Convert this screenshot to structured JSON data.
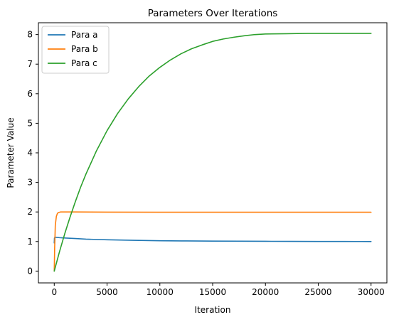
{
  "chart_data": {
    "type": "line",
    "title": "Parameters Over Iterations",
    "xlabel": "Iteration",
    "ylabel": "Parameter Value",
    "xlim": [
      -1500,
      31500
    ],
    "ylim": [
      -0.4,
      8.4
    ],
    "xticks": [
      0,
      5000,
      10000,
      15000,
      20000,
      25000,
      30000
    ],
    "xtick_labels": [
      "0",
      "5000",
      "10000",
      "15000",
      "20000",
      "25000",
      "30000"
    ],
    "yticks": [
      0,
      1,
      2,
      3,
      4,
      5,
      6,
      7,
      8
    ],
    "ytick_labels": [
      "0",
      "1",
      "2",
      "3",
      "4",
      "5",
      "6",
      "7",
      "8"
    ],
    "grid": false,
    "legend_position": "top-left",
    "series": [
      {
        "name": "Para a",
        "color": "#1f77b4",
        "x": [
          0,
          20,
          60,
          200,
          500,
          1000,
          2000,
          3000,
          5000,
          7500,
          10000,
          12500,
          15000,
          17500,
          20000,
          22500,
          25000,
          27500,
          30000
        ],
        "y": [
          0.95,
          1.12,
          1.14,
          1.14,
          1.13,
          1.12,
          1.1,
          1.08,
          1.06,
          1.04,
          1.025,
          1.02,
          1.015,
          1.01,
          1.007,
          1.005,
          1.003,
          1.002,
          1.0
        ]
      },
      {
        "name": "Para b",
        "color": "#ff7f0e",
        "x": [
          0,
          40,
          100,
          200,
          300,
          400,
          500,
          600,
          800,
          1000,
          2000,
          5000,
          10000,
          15000,
          20000,
          25000,
          30000
        ],
        "y": [
          0.0,
          0.8,
          1.55,
          1.85,
          1.95,
          1.98,
          1.99,
          2.0,
          2.0,
          2.0,
          2.0,
          1.995,
          1.99,
          1.99,
          1.99,
          1.99,
          1.99
        ]
      },
      {
        "name": "Para c",
        "color": "#2ca02c",
        "x": [
          0,
          500,
          1000,
          1500,
          2000,
          2500,
          3000,
          4000,
          5000,
          6000,
          7000,
          8000,
          9000,
          10000,
          11000,
          12000,
          13000,
          14000,
          15000,
          16000,
          17000,
          18000,
          19000,
          20000,
          22000,
          24000,
          26000,
          28000,
          30000
        ],
        "y": [
          0.0,
          0.66,
          1.27,
          1.83,
          2.35,
          2.84,
          3.28,
          4.07,
          4.75,
          5.33,
          5.82,
          6.24,
          6.6,
          6.89,
          7.14,
          7.35,
          7.52,
          7.65,
          7.77,
          7.85,
          7.91,
          7.96,
          8.0,
          8.02,
          8.03,
          8.04,
          8.04,
          8.04,
          8.04
        ]
      }
    ]
  }
}
